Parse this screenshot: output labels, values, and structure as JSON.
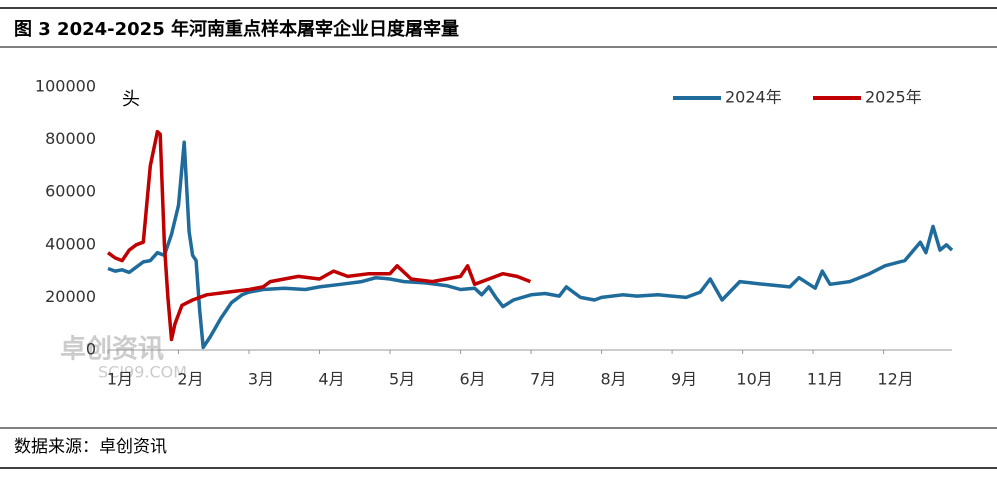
{
  "chart_data": {
    "type": "line",
    "title": "图 3 2024-2025 年河南重点样本屠宰企业日度屠宰量",
    "unit_label": "头",
    "watermark": [
      "卓创资讯",
      "SCI99.COM"
    ],
    "source": "数据来源：卓创资讯",
    "xlim": [
      1,
      12.97
    ],
    "xticks": [
      {
        "value": 1,
        "label": "1月"
      },
      {
        "value": 2,
        "label": "2月"
      },
      {
        "value": 3,
        "label": "3月"
      },
      {
        "value": 4,
        "label": "4月"
      },
      {
        "value": 5,
        "label": "5月"
      },
      {
        "value": 6,
        "label": "6月"
      },
      {
        "value": 7,
        "label": "7月"
      },
      {
        "value": 8,
        "label": "8月"
      },
      {
        "value": 9,
        "label": "9月"
      },
      {
        "value": 10,
        "label": "10月"
      },
      {
        "value": 11,
        "label": "11月"
      },
      {
        "value": 12,
        "label": "12月"
      }
    ],
    "ylim": [
      0,
      100000
    ],
    "yticks": [
      0,
      20000,
      40000,
      60000,
      80000,
      100000
    ],
    "grid": false,
    "legend": "top-right",
    "series": [
      {
        "name": "2024年",
        "color": "#1f6b9b",
        "x": [
          1.0,
          1.1,
          1.2,
          1.3,
          1.4,
          1.5,
          1.6,
          1.7,
          1.8,
          1.9,
          2.0,
          2.08,
          2.15,
          2.2,
          2.25,
          2.3,
          2.35,
          2.45,
          2.6,
          2.75,
          2.9,
          3.0,
          3.2,
          3.5,
          3.8,
          4.0,
          4.3,
          4.6,
          4.8,
          5.0,
          5.2,
          5.5,
          5.8,
          6.0,
          6.2,
          6.3,
          6.4,
          6.5,
          6.6,
          6.75,
          7.0,
          7.2,
          7.4,
          7.5,
          7.7,
          7.9,
          8.0,
          8.3,
          8.5,
          8.8,
          9.0,
          9.2,
          9.4,
          9.54,
          9.71,
          9.96,
          10.3,
          10.67,
          10.8,
          11.03,
          11.13,
          11.24,
          11.52,
          11.8,
          12.02,
          12.3,
          12.52,
          12.6,
          12.7,
          12.8,
          12.89,
          12.97
        ],
        "values": [
          31000,
          30000,
          30500,
          29500,
          31500,
          33500,
          34000,
          37000,
          36000,
          44000,
          55000,
          79000,
          45000,
          36000,
          34000,
          15000,
          1000,
          5000,
          12000,
          18000,
          21000,
          22000,
          23000,
          23500,
          23000,
          24000,
          25000,
          26000,
          27500,
          27000,
          26000,
          25500,
          24500,
          23000,
          23500,
          21000,
          24000,
          20000,
          16500,
          19000,
          21000,
          21500,
          20500,
          24000,
          20000,
          19000,
          20000,
          21000,
          20500,
          21000,
          20500,
          20000,
          22000,
          27000,
          19000,
          26000,
          25000,
          24000,
          27500,
          23500,
          30000,
          25000,
          26000,
          29000,
          32000,
          34000,
          41000,
          37000,
          47000,
          38000,
          40000,
          38000
        ]
      },
      {
        "name": "2025年",
        "color": "#c00000",
        "x": [
          1.0,
          1.1,
          1.2,
          1.3,
          1.4,
          1.5,
          1.6,
          1.7,
          1.74,
          1.8,
          1.85,
          1.9,
          1.95,
          2.05,
          2.2,
          2.4,
          2.7,
          3.0,
          3.2,
          3.3,
          3.5,
          3.7,
          4.0,
          4.2,
          4.4,
          4.7,
          5.0,
          5.1,
          5.3,
          5.6,
          5.8,
          6.0,
          6.1,
          6.2,
          6.4,
          6.6,
          6.8,
          6.99
        ],
        "values": [
          37000,
          35000,
          34000,
          38000,
          40000,
          41000,
          70000,
          83000,
          82000,
          40000,
          20000,
          4000,
          10000,
          17000,
          19000,
          21000,
          22000,
          23000,
          24000,
          26000,
          27000,
          28000,
          27000,
          30000,
          28000,
          29000,
          29000,
          32000,
          27000,
          26000,
          27000,
          28000,
          32000,
          25000,
          27000,
          29000,
          28000,
          26000
        ]
      }
    ]
  }
}
